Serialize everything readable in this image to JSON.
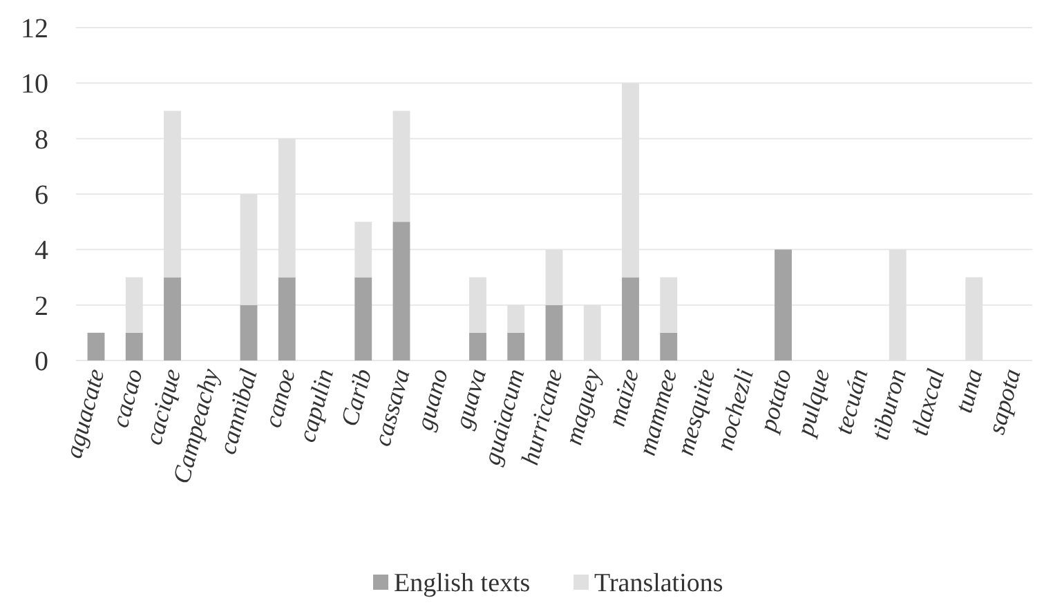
{
  "chart_data": {
    "type": "bar",
    "stacked": true,
    "categories": [
      "aguacate",
      "cacao",
      "cacique",
      "Campeachy",
      "cannibal",
      "canoe",
      "capulin",
      "Carib",
      "cassava",
      "guano",
      "guava",
      "guaiacum",
      "hurricane",
      "maguey",
      "maize",
      "mammee",
      "mesquite",
      "nochezli",
      "potato",
      "pulque",
      "tecuán",
      "tiburon",
      "tlaxcal",
      "tuna",
      "sapota"
    ],
    "series": [
      {
        "name": "English texts",
        "color": "#a3a3a3",
        "values": [
          1,
          1,
          3,
          0,
          2,
          3,
          0,
          3,
          5,
          0,
          1,
          1,
          2,
          0,
          3,
          1,
          0,
          0,
          4,
          0,
          0,
          0,
          0,
          0,
          0
        ]
      },
      {
        "name": "Translations",
        "color": "#e0e0e0",
        "values": [
          0,
          2,
          6,
          0,
          4,
          5,
          0,
          2,
          4,
          0,
          2,
          1,
          2,
          2,
          7,
          2,
          0,
          0,
          0,
          0,
          0,
          4,
          0,
          3,
          0
        ]
      }
    ],
    "ylim": [
      0,
      12
    ],
    "yticks": [
      0,
      2,
      4,
      6,
      8,
      10,
      12
    ],
    "grid": "y",
    "legend": "bottom"
  }
}
